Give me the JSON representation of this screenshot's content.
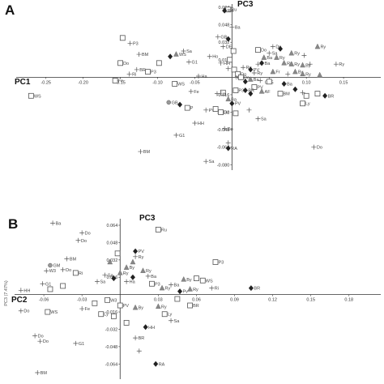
{
  "chart_data": [
    {
      "type": "scatter",
      "panel": "A",
      "xlabel": "PC1",
      "ylabel": "PC3",
      "xlim": [
        -0.29,
        0.2
      ],
      "ylim": [
        -0.085,
        0.067
      ],
      "x_ticks": [
        "-0.25",
        "-0.20",
        "-0.15",
        "-0.10",
        "-0.05",
        "0.05",
        "0.10",
        "0.15"
      ],
      "x_tick_values": [
        -0.25,
        -0.2,
        -0.15,
        -0.1,
        -0.05,
        0.05,
        0.1,
        0.15
      ],
      "y_ticks": [
        "0.064",
        "0.048",
        "0.032",
        "0.016",
        "-0.016",
        "-0.032",
        "-0.048",
        "-0.064",
        "-0.080"
      ],
      "y_tick_values": [
        0.064,
        0.048,
        0.032,
        0.016,
        -0.016,
        -0.032,
        -0.048,
        -0.064,
        -0.08
      ],
      "points": [
        {
          "x": -0.005,
          "y": 0.062,
          "m": "square",
          "label": "Ru"
        },
        {
          "x": -0.01,
          "y": 0.061,
          "m": "diamond",
          "label": "RA"
        },
        {
          "x": 0.0,
          "y": 0.046,
          "m": "plus",
          "label": "Ba"
        },
        {
          "x": -0.147,
          "y": 0.036,
          "m": "square",
          "label": ""
        },
        {
          "x": -0.137,
          "y": 0.031,
          "m": "plus",
          "label": "P3"
        },
        {
          "x": -0.125,
          "y": 0.021,
          "m": "plus",
          "label": "BM"
        },
        {
          "x": -0.15,
          "y": 0.013,
          "m": "square",
          "label": "Do"
        },
        {
          "x": -0.128,
          "y": 0.007,
          "m": "plus",
          "label": "BR"
        },
        {
          "x": -0.138,
          "y": 0.003,
          "m": "plus",
          "label": "Ri"
        },
        {
          "x": -0.113,
          "y": 0.005,
          "m": "square",
          "label": "P3"
        },
        {
          "x": -0.098,
          "y": 0.013,
          "m": "square",
          "label": ""
        },
        {
          "x": -0.075,
          "y": 0.021,
          "m": "triangle",
          "label": "WS"
        },
        {
          "x": -0.065,
          "y": 0.024,
          "m": "plus",
          "label": "Sa"
        },
        {
          "x": -0.083,
          "y": 0.019,
          "m": "diamond",
          "label": ""
        },
        {
          "x": -0.058,
          "y": 0.014,
          "m": "plus",
          "label": "G1"
        },
        {
          "x": -0.03,
          "y": 0.019,
          "m": "plus",
          "label": "Ho"
        },
        {
          "x": -0.019,
          "y": 0.037,
          "m": "plus",
          "label": "GB"
        },
        {
          "x": -0.005,
          "y": 0.035,
          "m": "diamond",
          "label": ""
        },
        {
          "x": -0.012,
          "y": 0.028,
          "m": "plus",
          "label": "DE"
        },
        {
          "x": 0.002,
          "y": 0.024,
          "m": "square",
          "label": ""
        },
        {
          "x": -0.015,
          "y": 0.013,
          "m": "plus",
          "label": "HH"
        },
        {
          "x": -0.005,
          "y": 0.008,
          "m": "plus",
          "label": "G1"
        },
        {
          "x": -0.045,
          "y": 0.001,
          "m": "plus",
          "label": "Ha"
        },
        {
          "x": -0.077,
          "y": -0.006,
          "m": "square",
          "label": "WS"
        },
        {
          "x": -0.055,
          "y": -0.013,
          "m": "plus",
          "label": "Fe"
        },
        {
          "x": -0.157,
          "y": -0.003,
          "m": "square",
          "label": "Fe"
        },
        {
          "x": -0.27,
          "y": -0.017,
          "m": "square",
          "label": "WS"
        },
        {
          "x": -0.085,
          "y": -0.023,
          "m": "circle",
          "label": "GB"
        },
        {
          "x": -0.07,
          "y": -0.025,
          "m": "diamond",
          "label": ""
        },
        {
          "x": -0.06,
          "y": -0.028,
          "m": "square",
          "label": "P"
        },
        {
          "x": -0.035,
          "y": -0.03,
          "m": "plus",
          "label": "PV"
        },
        {
          "x": -0.022,
          "y": -0.029,
          "m": "square",
          "label": ""
        },
        {
          "x": -0.05,
          "y": -0.042,
          "m": "plus",
          "label": "HH"
        },
        {
          "x": -0.075,
          "y": -0.053,
          "m": "plus",
          "label": "G1"
        },
        {
          "x": -0.01,
          "y": -0.047,
          "m": "plus",
          "label": "Do"
        },
        {
          "x": -0.005,
          "y": -0.06,
          "m": "plus",
          "label": ""
        },
        {
          "x": -0.005,
          "y": -0.065,
          "m": "diamond",
          "label": "RA"
        },
        {
          "x": -0.035,
          "y": -0.077,
          "m": "plus",
          "label": "Sa"
        },
        {
          "x": -0.123,
          "y": -0.068,
          "m": "plus",
          "label": "BM"
        },
        {
          "x": 0.035,
          "y": 0.025,
          "m": "square",
          "label": "Do"
        },
        {
          "x": 0.05,
          "y": 0.022,
          "m": "plus",
          "label": "Sa"
        },
        {
          "x": 0.055,
          "y": 0.028,
          "m": "plus",
          "label": "Do"
        },
        {
          "x": 0.065,
          "y": 0.026,
          "m": "diamond",
          "label": ""
        },
        {
          "x": 0.08,
          "y": 0.022,
          "m": "triangle",
          "label": "Ry"
        },
        {
          "x": 0.097,
          "y": 0.02,
          "m": "plus",
          "label": ""
        },
        {
          "x": 0.115,
          "y": 0.028,
          "m": "triangle",
          "label": "Ry"
        },
        {
          "x": 0.043,
          "y": 0.018,
          "m": "triangle",
          "label": "Ba"
        },
        {
          "x": 0.035,
          "y": 0.012,
          "m": "plus",
          "label": ""
        },
        {
          "x": 0.04,
          "y": 0.013,
          "m": "diamond",
          "label": "Ba"
        },
        {
          "x": 0.06,
          "y": 0.018,
          "m": "triangle",
          "label": "Ry"
        },
        {
          "x": 0.07,
          "y": 0.013,
          "m": "triangle",
          "label": "Ry"
        },
        {
          "x": 0.08,
          "y": 0.012,
          "m": "triangle",
          "label": "Ry"
        },
        {
          "x": 0.095,
          "y": 0.011,
          "m": "triangle",
          "label": "By"
        },
        {
          "x": 0.105,
          "y": 0.012,
          "m": "plus",
          "label": ""
        },
        {
          "x": 0.14,
          "y": 0.012,
          "m": "plus",
          "label": "Ry"
        },
        {
          "x": 0.085,
          "y": 0.005,
          "m": "triangle",
          "label": "By"
        },
        {
          "x": 0.075,
          "y": 0.003,
          "m": "plus",
          "label": ""
        },
        {
          "x": 0.015,
          "y": 0.009,
          "m": "plus",
          "label": "Ry"
        },
        {
          "x": 0.025,
          "y": 0.007,
          "m": "diamond",
          "label": "PV"
        },
        {
          "x": 0.03,
          "y": 0.004,
          "m": "plus",
          "label": "Ry"
        },
        {
          "x": 0.055,
          "y": 0.005,
          "m": "triangle",
          "label": "Fr"
        },
        {
          "x": 0.095,
          "y": 0.003,
          "m": "triangle",
          "label": "Ry"
        },
        {
          "x": 0.118,
          "y": 0.002,
          "m": "triangle",
          "label": ""
        },
        {
          "x": -0.003,
          "y": 0.016,
          "m": "square",
          "label": ""
        },
        {
          "x": 0.003,
          "y": 0.007,
          "m": "square",
          "label": ""
        },
        {
          "x": 0.008,
          "y": 0.003,
          "m": "square",
          "label": "Do"
        },
        {
          "x": 0.0,
          "y": 0.0,
          "m": "plus",
          "label": "Sa"
        },
        {
          "x": 0.012,
          "y": 0.0,
          "m": "square",
          "label": "Do"
        },
        {
          "x": 0.025,
          "y": -0.002,
          "m": "triangle",
          "label": "Ba"
        },
        {
          "x": 0.018,
          "y": -0.004,
          "m": "diamond",
          "label": ""
        },
        {
          "x": 0.038,
          "y": -0.003,
          "m": "plus",
          "label": ""
        },
        {
          "x": 0.05,
          "y": -0.004,
          "m": "square",
          "label": ""
        },
        {
          "x": 0.07,
          "y": -0.006,
          "m": "diamond",
          "label": "Ba"
        },
        {
          "x": 0.03,
          "y": -0.009,
          "m": "square",
          "label": "PV"
        },
        {
          "x": 0.018,
          "y": -0.012,
          "m": "diamond",
          "label": "BR"
        },
        {
          "x": 0.005,
          "y": -0.012,
          "m": "square",
          "label": "P3"
        },
        {
          "x": 0.025,
          "y": -0.015,
          "m": "diamond",
          "label": ""
        },
        {
          "x": 0.04,
          "y": -0.013,
          "m": "triangle",
          "label": "AF"
        },
        {
          "x": 0.065,
          "y": -0.015,
          "m": "square",
          "label": "BM"
        },
        {
          "x": 0.085,
          "y": -0.011,
          "m": "diamond",
          "label": ""
        },
        {
          "x": 0.095,
          "y": -0.014,
          "m": "plus",
          "label": ""
        },
        {
          "x": 0.1,
          "y": -0.017,
          "m": "square",
          "label": ""
        },
        {
          "x": 0.115,
          "y": -0.015,
          "m": "square",
          "label": ""
        },
        {
          "x": 0.125,
          "y": -0.017,
          "m": "diamond",
          "label": "BR"
        },
        {
          "x": 0.095,
          "y": -0.024,
          "m": "square",
          "label": "Ly"
        },
        {
          "x": -0.012,
          "y": -0.014,
          "m": "square",
          "label": ""
        },
        {
          "x": -0.005,
          "y": -0.02,
          "m": "triangle",
          "label": "Ba"
        },
        {
          "x": -0.02,
          "y": -0.015,
          "m": "plus",
          "label": "Fe"
        },
        {
          "x": 0.0,
          "y": -0.024,
          "m": "diamond",
          "label": "PV"
        },
        {
          "x": -0.015,
          "y": -0.032,
          "m": "square",
          "label": "Do"
        },
        {
          "x": 0.005,
          "y": -0.033,
          "m": "square",
          "label": ""
        },
        {
          "x": 0.035,
          "y": -0.038,
          "m": "plus",
          "label": "Sa"
        },
        {
          "x": 0.023,
          "y": -0.03,
          "m": "plus",
          "label": ""
        },
        {
          "x": 0.11,
          "y": -0.064,
          "m": "plus",
          "label": "Do"
        }
      ]
    },
    {
      "type": "scatter",
      "panel": "B",
      "xlabel": "PC2",
      "ylabel": "PC3",
      "side_label": "PC3 (7.47%)",
      "xlim": [
        -0.083,
        0.205
      ],
      "ylim": [
        -0.078,
        0.07
      ],
      "x_ticks": [
        "-0.06",
        "-0.03",
        "0.03",
        "0.06",
        "0.09",
        "0.12",
        "0.15",
        "0.18"
      ],
      "x_tick_values": [
        -0.06,
        -0.03,
        0.03,
        0.06,
        0.09,
        0.12,
        0.15,
        0.18
      ],
      "y_ticks": [
        "0.064",
        "0.048",
        "0.032",
        "0.016",
        "-0.016",
        "-0.032",
        "-0.048",
        "-0.064"
      ],
      "y_tick_values": [
        0.064,
        0.048,
        0.032,
        0.016,
        -0.016,
        -0.032,
        -0.048,
        -0.064
      ],
      "points": [
        {
          "x": -0.053,
          "y": 0.066,
          "m": "plus",
          "label": "Ba"
        },
        {
          "x": -0.03,
          "y": 0.057,
          "m": "plus",
          "label": "Do"
        },
        {
          "x": -0.033,
          "y": 0.05,
          "m": "plus",
          "label": "Do"
        },
        {
          "x": 0.03,
          "y": 0.06,
          "m": "square",
          "label": "Ru"
        },
        {
          "x": -0.042,
          "y": 0.033,
          "m": "plus",
          "label": "BM"
        },
        {
          "x": -0.055,
          "y": 0.027,
          "m": "circle",
          "label": "GM"
        },
        {
          "x": -0.045,
          "y": 0.023,
          "m": "plus",
          "label": "Do"
        },
        {
          "x": -0.058,
          "y": 0.022,
          "m": "plus",
          "label": "W3"
        },
        {
          "x": -0.035,
          "y": 0.02,
          "m": "square",
          "label": "Ri"
        },
        {
          "x": -0.078,
          "y": 0.004,
          "m": "plus",
          "label": "HH"
        },
        {
          "x": -0.061,
          "y": 0.01,
          "m": "plus",
          "label": "G1"
        },
        {
          "x": -0.055,
          "y": 0.005,
          "m": "square",
          "label": ""
        },
        {
          "x": -0.045,
          "y": 0.008,
          "m": "square",
          "label": ""
        },
        {
          "x": -0.078,
          "y": -0.015,
          "m": "plus",
          "label": "Do"
        },
        {
          "x": -0.057,
          "y": -0.016,
          "m": "square",
          "label": "WS"
        },
        {
          "x": -0.03,
          "y": -0.013,
          "m": "plus",
          "label": "Fe"
        },
        {
          "x": -0.012,
          "y": 0.018,
          "m": "plus",
          "label": "Sa"
        },
        {
          "x": -0.018,
          "y": 0.012,
          "m": "plus",
          "label": "Sa"
        },
        {
          "x": -0.005,
          "y": 0.015,
          "m": "diamond",
          "label": ""
        },
        {
          "x": 0.0,
          "y": 0.02,
          "m": "triangle",
          "label": "Ry"
        },
        {
          "x": 0.005,
          "y": 0.025,
          "m": "triangle",
          "label": "By"
        },
        {
          "x": 0.01,
          "y": 0.03,
          "m": "triangle",
          "label": ""
        },
        {
          "x": 0.012,
          "y": 0.04,
          "m": "diamond",
          "label": "PV"
        },
        {
          "x": 0.012,
          "y": 0.035,
          "m": "plus",
          "label": "Ry"
        },
        {
          "x": -0.002,
          "y": 0.038,
          "m": "square",
          "label": ""
        },
        {
          "x": -0.008,
          "y": 0.03,
          "m": "triangle",
          "label": ""
        },
        {
          "x": 0.005,
          "y": 0.012,
          "m": "plus",
          "label": "Ha"
        },
        {
          "x": 0.01,
          "y": 0.016,
          "m": "diamond",
          "label": ""
        },
        {
          "x": 0.018,
          "y": 0.022,
          "m": "triangle",
          "label": "Ry"
        },
        {
          "x": 0.022,
          "y": 0.017,
          "m": "plus",
          "label": "Ba"
        },
        {
          "x": 0.025,
          "y": 0.01,
          "m": "square",
          "label": "P3"
        },
        {
          "x": 0.033,
          "y": 0.006,
          "m": "triangle",
          "label": "Ry"
        },
        {
          "x": 0.04,
          "y": 0.009,
          "m": "plus",
          "label": "Ba"
        },
        {
          "x": 0.05,
          "y": 0.014,
          "m": "triangle",
          "label": "By"
        },
        {
          "x": 0.055,
          "y": 0.005,
          "m": "triangle",
          "label": "Ry"
        },
        {
          "x": 0.047,
          "y": 0.003,
          "m": "diamond",
          "label": "Pv"
        },
        {
          "x": 0.06,
          "y": 0.015,
          "m": "square",
          "label": ""
        },
        {
          "x": 0.065,
          "y": 0.013,
          "m": "square",
          "label": "WS"
        },
        {
          "x": 0.072,
          "y": 0.006,
          "m": "plus",
          "label": "Ri"
        },
        {
          "x": 0.075,
          "y": 0.03,
          "m": "square",
          "label": "P3"
        },
        {
          "x": 0.103,
          "y": 0.006,
          "m": "diamond",
          "label": "BR"
        },
        {
          "x": 0.045,
          "y": -0.004,
          "m": "square",
          "label": ""
        },
        {
          "x": 0.055,
          "y": -0.01,
          "m": "square",
          "label": "BR"
        },
        {
          "x": 0.03,
          "y": -0.011,
          "m": "triangle",
          "label": "Ry"
        },
        {
          "x": 0.035,
          "y": -0.018,
          "m": "square",
          "label": "Ly"
        },
        {
          "x": 0.04,
          "y": -0.024,
          "m": "plus",
          "label": "Sa"
        },
        {
          "x": 0.012,
          "y": -0.012,
          "m": "triangle",
          "label": "By"
        },
        {
          "x": 0.0,
          "y": -0.01,
          "m": "square",
          "label": "PV"
        },
        {
          "x": -0.01,
          "y": -0.005,
          "m": "square",
          "label": "W3"
        },
        {
          "x": -0.02,
          "y": -0.008,
          "m": "square",
          "label": ""
        },
        {
          "x": -0.015,
          "y": -0.018,
          "m": "square",
          "label": "Ly"
        },
        {
          "x": -0.005,
          "y": -0.02,
          "m": "square",
          "label": ""
        },
        {
          "x": 0.005,
          "y": -0.026,
          "m": "square",
          "label": ""
        },
        {
          "x": 0.02,
          "y": -0.03,
          "m": "diamond",
          "label": "HH"
        },
        {
          "x": 0.012,
          "y": -0.04,
          "m": "plus",
          "label": "BR"
        },
        {
          "x": 0.015,
          "y": -0.052,
          "m": "plus",
          "label": ""
        },
        {
          "x": 0.028,
          "y": -0.064,
          "m": "diamond",
          "label": "RA"
        },
        {
          "x": -0.035,
          "y": -0.045,
          "m": "plus",
          "label": "G1"
        },
        {
          "x": -0.067,
          "y": -0.038,
          "m": "plus",
          "label": "Do"
        },
        {
          "x": -0.063,
          "y": -0.043,
          "m": "plus",
          "label": "Do"
        },
        {
          "x": -0.065,
          "y": -0.072,
          "m": "plus",
          "label": "BM"
        }
      ]
    }
  ]
}
